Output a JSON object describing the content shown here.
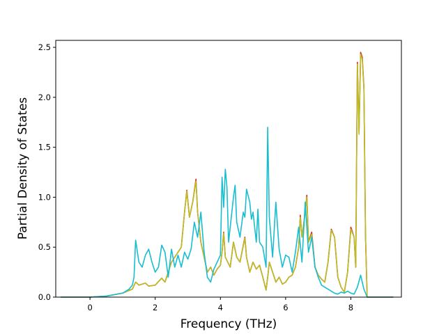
{
  "chart_data": {
    "type": "line",
    "title": "",
    "xlabel": "Frequency (THz)",
    "ylabel": "Partial Density of States",
    "xlim": [
      -1.05,
      9.55
    ],
    "ylim": [
      0.0,
      2.57
    ],
    "x_ticks": [
      0,
      2,
      4,
      6,
      8
    ],
    "y_ticks": [
      0.0,
      0.5,
      1.0,
      1.5,
      2.0,
      2.5
    ],
    "grid": false,
    "legend": "none",
    "series": [
      {
        "color": "#d62728",
        "points": [
          [
            -0.9,
            0
          ],
          [
            0,
            0
          ],
          [
            0.5,
            0.01
          ],
          [
            1.0,
            0.04
          ],
          [
            1.3,
            0.08
          ],
          [
            1.4,
            0.15
          ],
          [
            1.5,
            0.12
          ],
          [
            1.7,
            0.14
          ],
          [
            1.8,
            0.11
          ],
          [
            2.0,
            0.12
          ],
          [
            2.2,
            0.19
          ],
          [
            2.3,
            0.15
          ],
          [
            2.5,
            0.35
          ],
          [
            2.7,
            0.45
          ],
          [
            2.8,
            0.5
          ],
          [
            2.9,
            0.85
          ],
          [
            2.97,
            1.07
          ],
          [
            3.05,
            0.8
          ],
          [
            3.15,
            0.95
          ],
          [
            3.25,
            1.18
          ],
          [
            3.3,
            0.85
          ],
          [
            3.4,
            0.55
          ],
          [
            3.5,
            0.4
          ],
          [
            3.6,
            0.25
          ],
          [
            3.7,
            0.3
          ],
          [
            3.8,
            0.22
          ],
          [
            3.9,
            0.28
          ],
          [
            4.0,
            0.32
          ],
          [
            4.05,
            0.45
          ],
          [
            4.1,
            0.65
          ],
          [
            4.15,
            0.4
          ],
          [
            4.3,
            0.3
          ],
          [
            4.4,
            0.55
          ],
          [
            4.5,
            0.4
          ],
          [
            4.6,
            0.35
          ],
          [
            4.75,
            0.6
          ],
          [
            4.8,
            0.4
          ],
          [
            4.9,
            0.25
          ],
          [
            5.0,
            0.35
          ],
          [
            5.1,
            0.28
          ],
          [
            5.2,
            0.32
          ],
          [
            5.3,
            0.2
          ],
          [
            5.4,
            0.07
          ],
          [
            5.45,
            0.2
          ],
          [
            5.5,
            0.35
          ],
          [
            5.6,
            0.25
          ],
          [
            5.7,
            0.15
          ],
          [
            5.8,
            0.2
          ],
          [
            5.9,
            0.13
          ],
          [
            6.0,
            0.15
          ],
          [
            6.1,
            0.2
          ],
          [
            6.2,
            0.22
          ],
          [
            6.3,
            0.3
          ],
          [
            6.4,
            0.5
          ],
          [
            6.45,
            0.82
          ],
          [
            6.5,
            0.6
          ],
          [
            6.6,
            0.85
          ],
          [
            6.65,
            1.02
          ],
          [
            6.7,
            0.55
          ],
          [
            6.8,
            0.65
          ],
          [
            6.9,
            0.3
          ],
          [
            7.0,
            0.22
          ],
          [
            7.1,
            0.18
          ],
          [
            7.2,
            0.15
          ],
          [
            7.3,
            0.35
          ],
          [
            7.4,
            0.68
          ],
          [
            7.5,
            0.6
          ],
          [
            7.6,
            0.2
          ],
          [
            7.7,
            0.1
          ],
          [
            7.8,
            0.05
          ],
          [
            7.9,
            0.25
          ],
          [
            8.0,
            0.7
          ],
          [
            8.1,
            0.6
          ],
          [
            8.15,
            0.3
          ],
          [
            8.2,
            2.35
          ],
          [
            8.25,
            1.65
          ],
          [
            8.3,
            2.45
          ],
          [
            8.35,
            2.4
          ],
          [
            8.4,
            2.1
          ],
          [
            8.45,
            0.6
          ],
          [
            8.5,
            0
          ],
          [
            9.3,
            0
          ]
        ]
      },
      {
        "color": "#bcbd22",
        "points": [
          [
            -0.9,
            0
          ],
          [
            0,
            0
          ],
          [
            0.5,
            0.01
          ],
          [
            1.0,
            0.04
          ],
          [
            1.3,
            0.08
          ],
          [
            1.4,
            0.15
          ],
          [
            1.5,
            0.12
          ],
          [
            1.7,
            0.14
          ],
          [
            1.8,
            0.11
          ],
          [
            2.0,
            0.12
          ],
          [
            2.2,
            0.19
          ],
          [
            2.3,
            0.15
          ],
          [
            2.5,
            0.35
          ],
          [
            2.7,
            0.45
          ],
          [
            2.8,
            0.5
          ],
          [
            2.9,
            0.85
          ],
          [
            2.97,
            1.06
          ],
          [
            3.05,
            0.8
          ],
          [
            3.15,
            0.95
          ],
          [
            3.25,
            1.16
          ],
          [
            3.3,
            0.85
          ],
          [
            3.4,
            0.55
          ],
          [
            3.5,
            0.4
          ],
          [
            3.6,
            0.25
          ],
          [
            3.7,
            0.3
          ],
          [
            3.8,
            0.22
          ],
          [
            3.9,
            0.28
          ],
          [
            4.0,
            0.32
          ],
          [
            4.05,
            0.45
          ],
          [
            4.1,
            0.64
          ],
          [
            4.15,
            0.4
          ],
          [
            4.3,
            0.3
          ],
          [
            4.4,
            0.55
          ],
          [
            4.5,
            0.4
          ],
          [
            4.6,
            0.35
          ],
          [
            4.75,
            0.59
          ],
          [
            4.8,
            0.4
          ],
          [
            4.9,
            0.25
          ],
          [
            5.0,
            0.35
          ],
          [
            5.1,
            0.28
          ],
          [
            5.2,
            0.32
          ],
          [
            5.3,
            0.2
          ],
          [
            5.4,
            0.07
          ],
          [
            5.45,
            0.2
          ],
          [
            5.5,
            0.35
          ],
          [
            5.6,
            0.25
          ],
          [
            5.7,
            0.15
          ],
          [
            5.8,
            0.2
          ],
          [
            5.9,
            0.13
          ],
          [
            6.0,
            0.15
          ],
          [
            6.1,
            0.2
          ],
          [
            6.2,
            0.22
          ],
          [
            6.3,
            0.3
          ],
          [
            6.4,
            0.5
          ],
          [
            6.45,
            0.8
          ],
          [
            6.5,
            0.6
          ],
          [
            6.6,
            0.85
          ],
          [
            6.65,
            1.0
          ],
          [
            6.7,
            0.55
          ],
          [
            6.8,
            0.63
          ],
          [
            6.9,
            0.3
          ],
          [
            7.0,
            0.22
          ],
          [
            7.1,
            0.18
          ],
          [
            7.2,
            0.15
          ],
          [
            7.3,
            0.35
          ],
          [
            7.4,
            0.67
          ],
          [
            7.5,
            0.6
          ],
          [
            7.6,
            0.2
          ],
          [
            7.7,
            0.1
          ],
          [
            7.8,
            0.05
          ],
          [
            7.9,
            0.25
          ],
          [
            8.0,
            0.68
          ],
          [
            8.1,
            0.6
          ],
          [
            8.15,
            0.3
          ],
          [
            8.2,
            2.33
          ],
          [
            8.25,
            1.63
          ],
          [
            8.3,
            2.43
          ],
          [
            8.35,
            2.38
          ],
          [
            8.4,
            2.08
          ],
          [
            8.45,
            0.6
          ],
          [
            8.5,
            0
          ],
          [
            9.3,
            0
          ]
        ]
      },
      {
        "color": "#17becf",
        "points": [
          [
            -0.9,
            0
          ],
          [
            0,
            0
          ],
          [
            0.5,
            0.01
          ],
          [
            1.0,
            0.04
          ],
          [
            1.2,
            0.08
          ],
          [
            1.3,
            0.12
          ],
          [
            1.35,
            0.2
          ],
          [
            1.4,
            0.57
          ],
          [
            1.5,
            0.35
          ],
          [
            1.6,
            0.3
          ],
          [
            1.7,
            0.42
          ],
          [
            1.8,
            0.48
          ],
          [
            1.9,
            0.35
          ],
          [
            2.0,
            0.25
          ],
          [
            2.1,
            0.3
          ],
          [
            2.2,
            0.52
          ],
          [
            2.3,
            0.45
          ],
          [
            2.4,
            0.2
          ],
          [
            2.5,
            0.48
          ],
          [
            2.6,
            0.3
          ],
          [
            2.7,
            0.42
          ],
          [
            2.8,
            0.3
          ],
          [
            2.9,
            0.45
          ],
          [
            3.0,
            0.38
          ],
          [
            3.1,
            0.48
          ],
          [
            3.2,
            0.75
          ],
          [
            3.3,
            0.6
          ],
          [
            3.4,
            0.85
          ],
          [
            3.5,
            0.45
          ],
          [
            3.6,
            0.2
          ],
          [
            3.7,
            0.15
          ],
          [
            3.8,
            0.28
          ],
          [
            3.9,
            0.35
          ],
          [
            4.0,
            0.42
          ],
          [
            4.05,
            1.2
          ],
          [
            4.1,
            0.9
          ],
          [
            4.15,
            1.28
          ],
          [
            4.2,
            1.1
          ],
          [
            4.25,
            0.55
          ],
          [
            4.3,
            0.7
          ],
          [
            4.4,
            1.0
          ],
          [
            4.45,
            1.12
          ],
          [
            4.5,
            0.75
          ],
          [
            4.6,
            0.6
          ],
          [
            4.7,
            0.85
          ],
          [
            4.75,
            0.8
          ],
          [
            4.8,
            1.08
          ],
          [
            4.9,
            0.95
          ],
          [
            4.95,
            0.78
          ],
          [
            5.0,
            0.85
          ],
          [
            5.1,
            0.55
          ],
          [
            5.15,
            0.88
          ],
          [
            5.2,
            0.55
          ],
          [
            5.3,
            0.5
          ],
          [
            5.4,
            0.3
          ],
          [
            5.45,
            1.7
          ],
          [
            5.5,
            0.8
          ],
          [
            5.6,
            0.4
          ],
          [
            5.7,
            0.95
          ],
          [
            5.8,
            0.48
          ],
          [
            5.9,
            0.3
          ],
          [
            6.0,
            0.42
          ],
          [
            6.1,
            0.4
          ],
          [
            6.2,
            0.25
          ],
          [
            6.3,
            0.45
          ],
          [
            6.4,
            0.7
          ],
          [
            6.5,
            0.35
          ],
          [
            6.6,
            0.95
          ],
          [
            6.7,
            0.45
          ],
          [
            6.8,
            0.6
          ],
          [
            6.9,
            0.3
          ],
          [
            7.0,
            0.2
          ],
          [
            7.1,
            0.12
          ],
          [
            7.2,
            0.1
          ],
          [
            7.3,
            0.08
          ],
          [
            7.4,
            0.06
          ],
          [
            7.5,
            0.04
          ],
          [
            7.6,
            0.03
          ],
          [
            7.7,
            0.05
          ],
          [
            7.8,
            0.04
          ],
          [
            7.9,
            0.06
          ],
          [
            8.0,
            0.04
          ],
          [
            8.1,
            0.03
          ],
          [
            8.2,
            0.1
          ],
          [
            8.3,
            0.22
          ],
          [
            8.4,
            0.08
          ],
          [
            8.5,
            0
          ],
          [
            9.3,
            0
          ]
        ]
      }
    ]
  }
}
